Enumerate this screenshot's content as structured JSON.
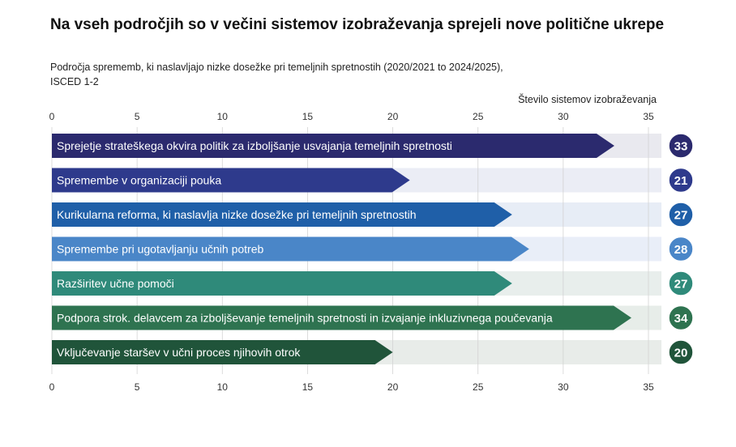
{
  "header": {
    "title": "Na vseh področjih so v večini sistemov izobraževanja sprejeli nove politične ukrepe",
    "subtitle_line1": "Področja sprememb, ki naslavljajo nizke dosežke pri temeljnih spretnostih (2020/2021 to 2024/2025),",
    "subtitle_line2": "ISCED 1-2",
    "axis_title": "Število sistemov izobraževanja"
  },
  "chart_data": {
    "type": "bar",
    "orientation": "horizontal",
    "xlim": [
      0,
      35
    ],
    "ticks": [
      0,
      5,
      10,
      15,
      20,
      25,
      30,
      35
    ],
    "grid": true,
    "categories": [
      "Sprejetje strateškega okvira politik za izboljšanje usvajanja temeljnih spretnosti",
      "Spremembe v organizaciji pouka",
      "Kurikularna reforma, ki naslavlja nizke dosežke pri temeljnih spretnostih",
      "Spremembe pri ugotavljanju učnih potreb",
      "Razširitev učne pomoči",
      "Podpora strok. delavcem za izboljševanje temeljnih spretnosti in izvajanje inkluzivnega poučevanja",
      "Vključevanje staršev v učni proces njihovih otrok"
    ],
    "values": [
      33,
      21,
      27,
      28,
      27,
      34,
      20
    ],
    "bar_colors": [
      "#2b2a6e",
      "#2e3a8c",
      "#1f5fa8",
      "#4a86c8",
      "#2f8a7a",
      "#2e7350",
      "#20543a"
    ],
    "track_colors": [
      "#e9e9ef",
      "#ebedf5",
      "#e7edf6",
      "#e9eef8",
      "#e8eeec",
      "#e7ede9",
      "#e8ece9"
    ]
  }
}
